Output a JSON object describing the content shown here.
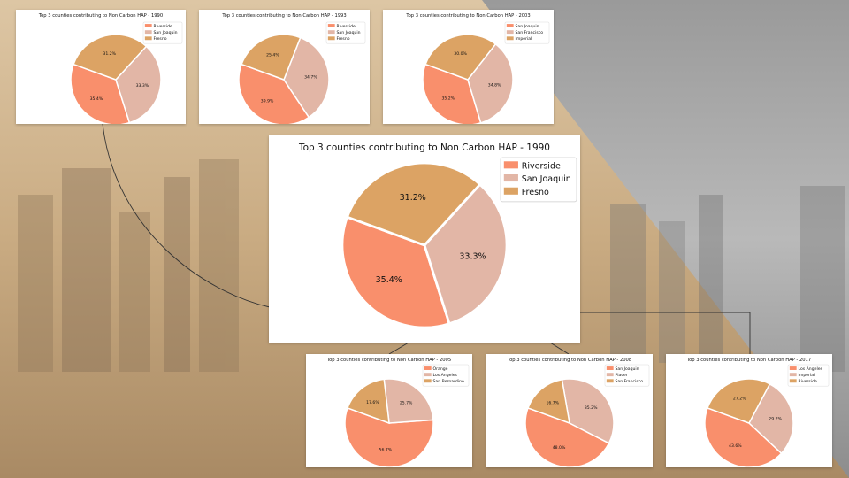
{
  "colors": {
    "slice1": "#f98f6c",
    "slice2": "#e2b6a6",
    "slice3": "#dca364",
    "legend_border": "#cccccc"
  },
  "chart_data": [
    {
      "type": "pie",
      "title": "Top 3 counties contributing to Non Carbon HAP - 1990",
      "labels": [
        "Riverside",
        "San Joaquin",
        "Fresno"
      ],
      "values": [
        35.4,
        33.3,
        31.2
      ],
      "legend": "top-right"
    },
    {
      "type": "pie",
      "title": "Top 3 counties contributing to Non Carbon HAP - 1993",
      "labels": [
        "Riverside",
        "San Joaquin",
        "Fresno"
      ],
      "values": [
        39.9,
        34.7,
        25.4
      ],
      "legend": "top-right"
    },
    {
      "type": "pie",
      "title": "Top 3 counties contributing to Non Carbon HAP - 2003",
      "labels": [
        "San Joaquin",
        "San Francisco",
        "Imperial"
      ],
      "values": [
        35.2,
        34.8,
        30.0
      ],
      "legend": "top-right"
    },
    {
      "type": "pie",
      "title": "Top 3 counties contributing to Non Carbon HAP - 1990",
      "labels": [
        "Riverside",
        "San Joaquin",
        "Fresno"
      ],
      "values": [
        35.4,
        33.3,
        31.2
      ],
      "legend": "top-right"
    },
    {
      "type": "pie",
      "title": "Top 3 counties contributing to Non Carbon HAP - 2005",
      "labels": [
        "Orange",
        "Los Angeles",
        "San Bernardino"
      ],
      "values": [
        56.7,
        25.7,
        17.6
      ],
      "legend": "top-right"
    },
    {
      "type": "pie",
      "title": "Top 3 counties contributing to Non Carbon HAP - 2008",
      "labels": [
        "San Joaquin",
        "Placer",
        "San Francisco"
      ],
      "values": [
        48.0,
        35.2,
        16.7
      ],
      "legend": "top-right"
    },
    {
      "type": "pie",
      "title": "Top 3 counties contributing to Non Carbon HAP - 2017",
      "labels": [
        "Los Angeles",
        "Imperial",
        "Riverside"
      ],
      "values": [
        43.6,
        29.2,
        27.2
      ],
      "legend": "top-right"
    }
  ]
}
